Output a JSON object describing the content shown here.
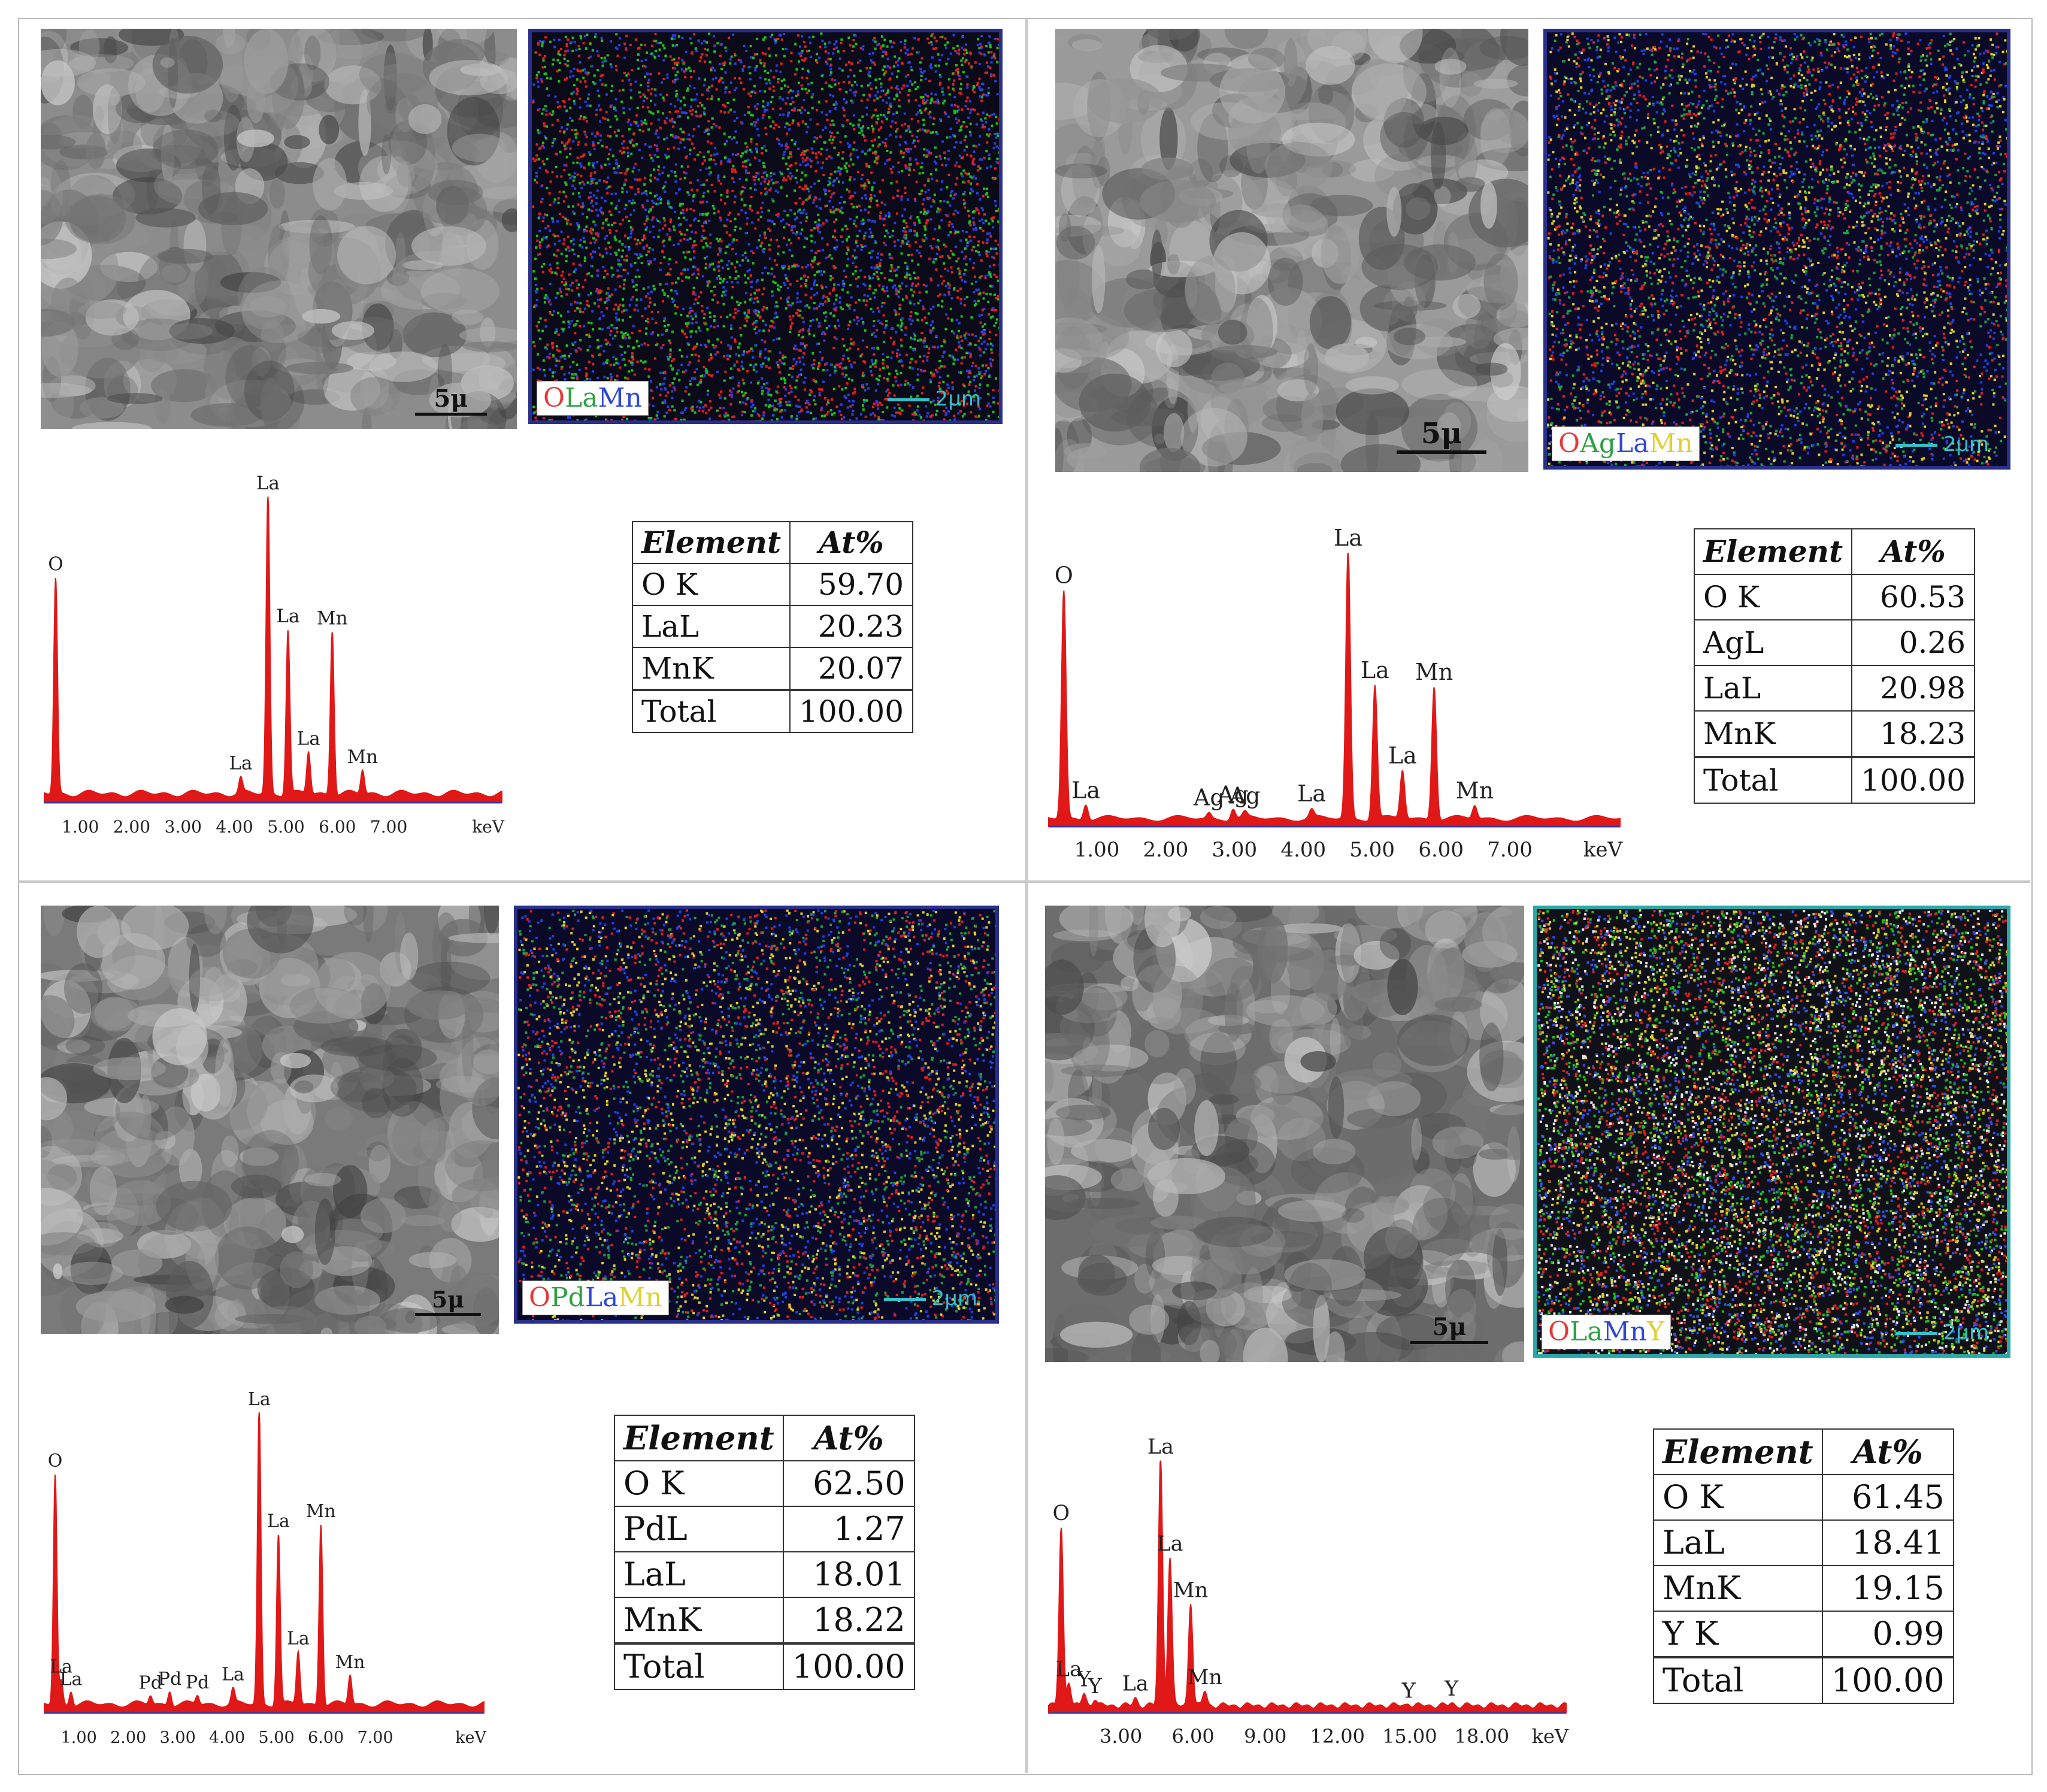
{
  "panels": [
    {
      "id": "LaMnO3",
      "sem_scale": "5μ",
      "map_legend": [
        {
          "text": "O",
          "color": "#e23a3a"
        },
        {
          "text": "La",
          "color": "#2fa043"
        },
        {
          "text": "Mn",
          "color": "#2f48d6"
        }
      ],
      "map_scale": "2μm",
      "map_colors": [
        "#e32020",
        "#20c020",
        "#2840e0",
        "#0a0a18"
      ],
      "table": {
        "headers": [
          "Element",
          "At%"
        ],
        "rows": [
          [
            "O K",
            "59.70"
          ],
          [
            "LaL",
            "20.23"
          ],
          [
            "MnK",
            "20.07"
          ]
        ],
        "total": [
          "Total",
          "100.00"
        ]
      }
    },
    {
      "id": "Ag",
      "sem_scale": "5μ",
      "map_legend": [
        {
          "text": "O",
          "color": "#e23a3a"
        },
        {
          "text": "Ag",
          "color": "#2fa043"
        },
        {
          "text": "La",
          "color": "#2f48d6"
        },
        {
          "text": "Mn",
          "color": "#e0d030"
        }
      ],
      "map_scale": "2μm",
      "map_colors": [
        "#e0d020",
        "#2040e0",
        "#20a040",
        "#e02020",
        "#0a0a28"
      ],
      "table": {
        "headers": [
          "Element",
          "At%"
        ],
        "rows": [
          [
            "O K",
            "60.53"
          ],
          [
            "AgL",
            "0.26"
          ],
          [
            "LaL",
            "20.98"
          ],
          [
            "MnK",
            "18.23"
          ]
        ],
        "total": [
          "Total",
          "100.00"
        ]
      }
    },
    {
      "id": "Pd",
      "sem_scale": "5μ",
      "map_legend": [
        {
          "text": "O",
          "color": "#e23a3a"
        },
        {
          "text": "Pd",
          "color": "#2fa043"
        },
        {
          "text": "La",
          "color": "#2f48d6"
        },
        {
          "text": "Mn",
          "color": "#e0d030"
        }
      ],
      "map_scale": "2μm",
      "map_colors": [
        "#e0d020",
        "#2040e0",
        "#20a040",
        "#e02020",
        "#0a0a28"
      ],
      "table": {
        "headers": [
          "Element",
          "At%"
        ],
        "rows": [
          [
            "O K",
            "62.50"
          ],
          [
            "PdL",
            "1.27"
          ],
          [
            "LaL",
            "18.01"
          ],
          [
            "MnK",
            "18.22"
          ]
        ],
        "total": [
          "Total",
          "100.00"
        ]
      }
    },
    {
      "id": "Y",
      "sem_scale": "5μ",
      "map_legend": [
        {
          "text": "O",
          "color": "#e23a3a"
        },
        {
          "text": "La",
          "color": "#2fa043"
        },
        {
          "text": "Mn",
          "color": "#2f48d6"
        },
        {
          "text": "Y",
          "color": "#e0d030"
        }
      ],
      "map_scale": "2μm",
      "map_colors": [
        "#e02020",
        "#20c020",
        "#3050e8",
        "#e8e8e8",
        "#d0d020",
        "#101018"
      ],
      "table": {
        "headers": [
          "Element",
          "At%"
        ],
        "rows": [
          [
            "O K",
            "61.45"
          ],
          [
            "LaL",
            "18.41"
          ],
          [
            "MnK",
            "19.15"
          ],
          [
            "Y K",
            "0.99"
          ]
        ],
        "total": [
          "Total",
          "100.00"
        ]
      }
    }
  ],
  "chart_data": [
    {
      "type": "line",
      "xlabel": "keV",
      "xlim": [
        0.3,
        9.2
      ],
      "x_ticks": [
        "1.00",
        "2.00",
        "3.00",
        "4.00",
        "5.00",
        "6.00",
        "7.00"
      ],
      "color": "#e01818",
      "peaks": [
        {
          "x": 0.52,
          "h": 0.72,
          "label": "O"
        },
        {
          "x": 4.12,
          "h": 0.05,
          "label": "La"
        },
        {
          "x": 4.65,
          "h": 1.0,
          "label": "La"
        },
        {
          "x": 5.04,
          "h": 0.55,
          "label": "La"
        },
        {
          "x": 5.44,
          "h": 0.14,
          "label": "La"
        },
        {
          "x": 5.9,
          "h": 0.55,
          "label": "Mn"
        },
        {
          "x": 6.49,
          "h": 0.08,
          "label": "Mn"
        }
      ]
    },
    {
      "type": "line",
      "xlabel": "keV",
      "xlim": [
        0.3,
        8.6
      ],
      "x_ticks": [
        "1.00",
        "2.00",
        "3.00",
        "4.00",
        "5.00",
        "6.00",
        "7.00"
      ],
      "color": "#e01818",
      "peaks": [
        {
          "x": 0.52,
          "h": 0.85,
          "label": "O"
        },
        {
          "x": 0.84,
          "h": 0.06,
          "label": "La"
        },
        {
          "x": 2.63,
          "h": 0.02,
          "label": "Ag"
        },
        {
          "x": 2.98,
          "h": 0.04,
          "label": "Ag"
        },
        {
          "x": 3.15,
          "h": 0.02,
          "label": "Ag"
        },
        {
          "x": 4.12,
          "h": 0.03,
          "label": "La"
        },
        {
          "x": 4.65,
          "h": 1.0,
          "label": "La"
        },
        {
          "x": 5.04,
          "h": 0.5,
          "label": "La"
        },
        {
          "x": 5.44,
          "h": 0.18,
          "label": "La"
        },
        {
          "x": 5.9,
          "h": 0.5,
          "label": "Mn"
        },
        {
          "x": 6.49,
          "h": 0.05,
          "label": "Mn"
        }
      ]
    },
    {
      "type": "line",
      "xlabel": "keV",
      "xlim": [
        0.3,
        9.2
      ],
      "x_ticks": [
        "1.00",
        "2.00",
        "3.00",
        "4.00",
        "5.00",
        "6.00",
        "7.00"
      ],
      "color": "#e01818",
      "peaks": [
        {
          "x": 0.52,
          "h": 0.78,
          "label": "O"
        },
        {
          "x": 0.64,
          "h": 0.08,
          "label": "La"
        },
        {
          "x": 0.84,
          "h": 0.05,
          "label": "La"
        },
        {
          "x": 2.45,
          "h": 0.03,
          "label": "Pd"
        },
        {
          "x": 2.84,
          "h": 0.05,
          "label": "Pd"
        },
        {
          "x": 3.4,
          "h": 0.03,
          "label": "Pd"
        },
        {
          "x": 4.12,
          "h": 0.05,
          "label": "La"
        },
        {
          "x": 4.65,
          "h": 1.0,
          "label": "La"
        },
        {
          "x": 5.04,
          "h": 0.58,
          "label": "La"
        },
        {
          "x": 5.44,
          "h": 0.18,
          "label": "La"
        },
        {
          "x": 5.9,
          "h": 0.62,
          "label": "Mn"
        },
        {
          "x": 6.49,
          "h": 0.1,
          "label": "Mn"
        }
      ]
    },
    {
      "type": "line",
      "xlabel": "keV",
      "xlim": [
        0,
        21.5
      ],
      "x_ticks": [
        "3.00",
        "6.00",
        "9.00",
        "12.00",
        "15.00",
        "18.00"
      ],
      "color": "#e01818",
      "peaks": [
        {
          "x": 0.52,
          "h": 0.72,
          "label": "O"
        },
        {
          "x": 0.84,
          "h": 0.1,
          "label": "La"
        },
        {
          "x": 1.47,
          "h": 0.05,
          "label": "Y"
        },
        {
          "x": 1.92,
          "h": 0.03,
          "label": "Y"
        },
        {
          "x": 3.6,
          "h": 0.03,
          "label": "La"
        },
        {
          "x": 4.65,
          "h": 1.0,
          "label": "La"
        },
        {
          "x": 5.04,
          "h": 0.6,
          "label": "La"
        },
        {
          "x": 5.9,
          "h": 0.42,
          "label": "Mn"
        },
        {
          "x": 6.49,
          "h": 0.06,
          "label": "Mn"
        },
        {
          "x": 14.96,
          "h": 0.01,
          "label": "Y"
        },
        {
          "x": 16.74,
          "h": 0.01,
          "label": "Y"
        }
      ]
    }
  ]
}
